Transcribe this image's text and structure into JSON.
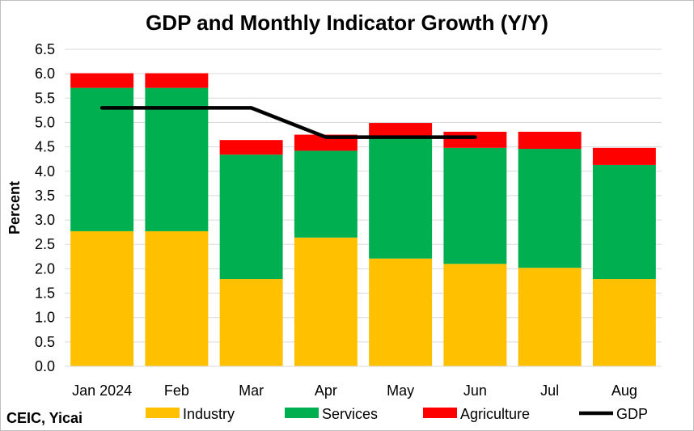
{
  "chart_data": {
    "type": "bar",
    "stacked": true,
    "title": "GDP and Monthly Indicator Growth (Y/Y)",
    "xlabel": "",
    "ylabel": "Percent",
    "ylim": [
      0,
      6.5
    ],
    "yticks": [
      "0.0",
      "0.5",
      "1.0",
      "1.5",
      "2.0",
      "2.5",
      "3.0",
      "3.5",
      "4.0",
      "4.5",
      "5.0",
      "5.5",
      "6.0",
      "6.5"
    ],
    "grid": true,
    "legend_position": "bottom",
    "categories": [
      "Jan 2024",
      "Feb",
      "Mar",
      "Apr",
      "May",
      "Jun",
      "Jul",
      "Aug"
    ],
    "series": [
      {
        "name": "Industry",
        "type": "bar",
        "color": "#FFC000",
        "values": [
          2.77,
          2.77,
          1.79,
          2.64,
          2.21,
          2.1,
          2.02,
          1.79
        ]
      },
      {
        "name": "Services",
        "type": "bar",
        "color": "#00B050",
        "values": [
          2.94,
          2.94,
          2.55,
          1.78,
          2.48,
          2.38,
          2.44,
          2.34
        ]
      },
      {
        "name": "Agriculture",
        "type": "bar",
        "color": "#FF0000",
        "values": [
          0.3,
          0.3,
          0.3,
          0.33,
          0.3,
          0.33,
          0.35,
          0.35
        ]
      },
      {
        "name": "GDP",
        "type": "line",
        "color": "#000000",
        "values": [
          5.3,
          5.3,
          5.3,
          4.7,
          4.7,
          4.7,
          null,
          null
        ]
      }
    ],
    "source": "CEIC, Yicai"
  }
}
